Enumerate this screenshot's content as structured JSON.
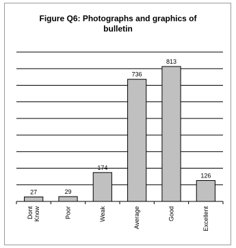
{
  "chart_data": {
    "type": "bar",
    "title_line1": "Figure Q6: Photographs and graphics of",
    "title_line2": "bulletin",
    "categories": [
      [
        "Dont",
        "Know"
      ],
      [
        "Poor"
      ],
      [
        "Weak"
      ],
      [
        "Average"
      ],
      [
        "Good"
      ],
      [
        "Excellent"
      ]
    ],
    "values": [
      27,
      29,
      174,
      736,
      813,
      126
    ],
    "ylim": [
      0,
      900
    ],
    "grid": true,
    "bar_color": "#c0c0c0",
    "bar_edge_color": "#000000"
  }
}
